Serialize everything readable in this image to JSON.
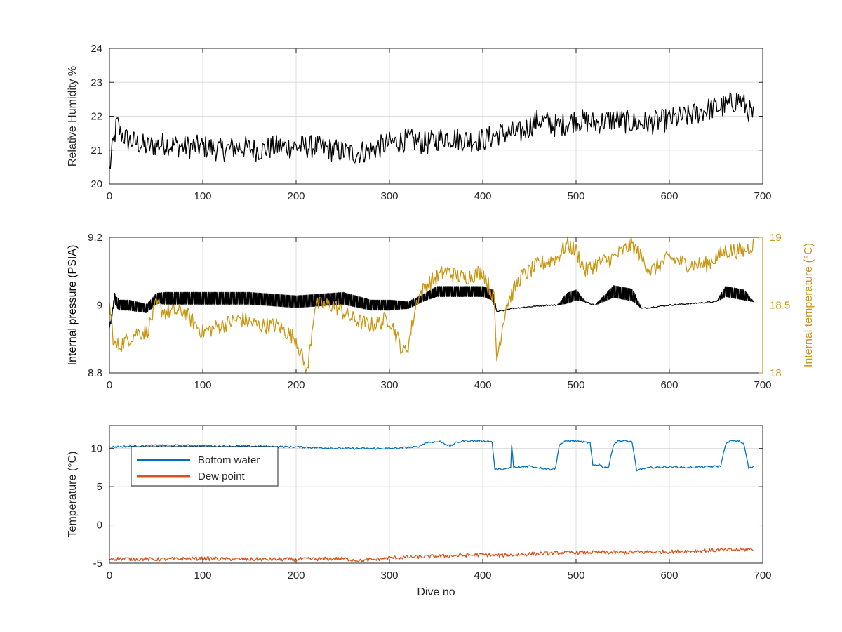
{
  "chart_data": [
    {
      "type": "line",
      "xlim": [
        0,
        700
      ],
      "ylim": [
        20,
        24
      ],
      "xticks": [
        0,
        100,
        200,
        300,
        400,
        500,
        600,
        700
      ],
      "yticks": [
        20,
        21,
        22,
        23,
        24
      ],
      "xlabel": "",
      "ylabel": "Relative Humidity %",
      "grid": true,
      "series": [
        {
          "color": "#000000",
          "noise": 0.35,
          "x": [
            0,
            3,
            8,
            12,
            20,
            40,
            60,
            80,
            100,
            120,
            140,
            160,
            180,
            200,
            220,
            240,
            260,
            280,
            300,
            320,
            340,
            360,
            380,
            400,
            420,
            440,
            460,
            480,
            500,
            520,
            540,
            560,
            580,
            600,
            620,
            640,
            660,
            675,
            690
          ],
          "y": [
            20.4,
            21.0,
            21.8,
            21.5,
            21.3,
            21.1,
            21.2,
            21.1,
            21.1,
            21.0,
            21.1,
            21.0,
            21.1,
            21.1,
            21.1,
            21.0,
            20.9,
            21.0,
            21.2,
            21.3,
            21.2,
            21.4,
            21.3,
            21.3,
            21.5,
            21.5,
            21.9,
            21.7,
            21.9,
            21.8,
            21.9,
            21.8,
            21.8,
            21.9,
            22.0,
            22.2,
            22.3,
            22.5,
            22.0
          ]
        }
      ]
    },
    {
      "type": "line",
      "xlim": [
        0,
        700
      ],
      "ylim": [
        8.8,
        9.2
      ],
      "y2lim": [
        18,
        19
      ],
      "xticks": [
        0,
        100,
        200,
        300,
        400,
        500,
        600,
        700
      ],
      "yticks": [
        8.8,
        9,
        9.2
      ],
      "y2ticks": [
        18,
        18.5,
        19
      ],
      "xlabel": "",
      "ylabel": "Internal pressure (PSIA)",
      "y2label": "Internal temperature (°C)",
      "y2color": "#c8960f",
      "grid": true,
      "series": [
        {
          "axis": "left",
          "color": "#000000",
          "osc": true,
          "x": [
            0,
            5,
            10,
            20,
            40,
            50,
            60,
            100,
            150,
            200,
            250,
            280,
            300,
            320,
            335,
            350,
            400,
            410,
            415,
            430,
            450,
            470,
            480,
            490,
            500,
            510,
            520,
            540,
            560,
            570,
            600,
            650,
            660,
            680,
            690
          ],
          "y": [
            8.93,
            9.02,
            9.0,
            9.0,
            8.99,
            9.02,
            9.02,
            9.02,
            9.02,
            9.01,
            9.02,
            9.0,
            9.0,
            9.0,
            9.02,
            9.04,
            9.04,
            9.03,
            8.98,
            8.99,
            8.995,
            9.0,
            9.0,
            9.02,
            9.03,
            9.01,
            9.0,
            9.04,
            9.03,
            8.99,
            9.0,
            9.01,
            9.04,
            9.03,
            9.01
          ],
          "osc_amp": [
            0.0,
            0.03,
            0.03,
            0.03,
            0.025,
            0.03,
            0.035,
            0.035,
            0.035,
            0.035,
            0.035,
            0.03,
            0.03,
            0.02,
            0.02,
            0.03,
            0.03,
            0.03,
            0.0,
            0.0,
            0.0,
            0.0,
            0.0,
            0.03,
            0.03,
            0.0,
            0.0,
            0.035,
            0.035,
            0.0,
            0.0,
            0.0,
            0.03,
            0.03,
            0.0
          ]
        },
        {
          "axis": "right",
          "color": "#c8960f",
          "noise": 0.06,
          "x": [
            0,
            5,
            10,
            20,
            30,
            40,
            50,
            60,
            80,
            100,
            120,
            140,
            160,
            180,
            200,
            212,
            220,
            240,
            260,
            280,
            300,
            315,
            320,
            330,
            340,
            350,
            360,
            380,
            400,
            412,
            415,
            425,
            440,
            460,
            480,
            490,
            500,
            510,
            520,
            540,
            560,
            580,
            600,
            620,
            640,
            660,
            680,
            690
          ],
          "y": [
            18.5,
            18.2,
            18.2,
            18.25,
            18.3,
            18.3,
            18.5,
            18.45,
            18.45,
            18.3,
            18.35,
            18.4,
            18.35,
            18.35,
            18.25,
            18.0,
            18.5,
            18.5,
            18.4,
            18.35,
            18.4,
            18.15,
            18.2,
            18.55,
            18.65,
            18.7,
            18.75,
            18.7,
            18.75,
            18.55,
            18.1,
            18.5,
            18.7,
            18.8,
            18.85,
            18.95,
            18.9,
            18.75,
            18.8,
            18.85,
            18.95,
            18.75,
            18.85,
            18.8,
            18.8,
            18.9,
            18.9,
            18.95
          ]
        }
      ]
    },
    {
      "type": "line",
      "xlim": [
        0,
        700
      ],
      "ylim": [
        -5,
        13
      ],
      "xticks": [
        0,
        100,
        200,
        300,
        400,
        500,
        600,
        700
      ],
      "yticks": [
        -5,
        0,
        5,
        10
      ],
      "xlabel": "Dive no",
      "ylabel": "Temperature (°C)",
      "grid": true,
      "legend": "top-left",
      "series": [
        {
          "name": "Bottom water",
          "color": "#0072bd",
          "noise": 0.12,
          "x": [
            0,
            50,
            100,
            115,
            150,
            200,
            250,
            300,
            330,
            340,
            355,
            365,
            370,
            380,
            400,
            410,
            413,
            416,
            425,
            430,
            431,
            433,
            436,
            450,
            470,
            478,
            482,
            490,
            500,
            510,
            515,
            518,
            525,
            530,
            535,
            540,
            545,
            550,
            560,
            565,
            568,
            580,
            600,
            620,
            640,
            655,
            660,
            665,
            675,
            680,
            685,
            690
          ],
          "y": [
            10.2,
            10.4,
            10.4,
            10.3,
            10.3,
            10.2,
            10.0,
            10.0,
            10.2,
            10.8,
            10.9,
            10.3,
            10.7,
            11.0,
            11.0,
            10.9,
            7.2,
            7.3,
            7.3,
            7.5,
            10.5,
            7.6,
            7.5,
            7.7,
            7.3,
            7.4,
            10.5,
            11.0,
            11.0,
            10.8,
            10.7,
            7.8,
            7.9,
            7.5,
            7.6,
            10.5,
            11.0,
            11.0,
            10.9,
            7.0,
            7.3,
            7.5,
            7.6,
            7.5,
            7.6,
            7.7,
            10.5,
            11.0,
            11.0,
            10.5,
            7.4,
            7.6
          ]
        },
        {
          "name": "Dew point",
          "color": "#d95319",
          "noise": 0.25,
          "x": [
            0,
            50,
            100,
            150,
            200,
            250,
            270,
            300,
            350,
            400,
            420,
            450,
            500,
            550,
            600,
            650,
            690
          ],
          "y": [
            -4.4,
            -4.5,
            -4.4,
            -4.5,
            -4.5,
            -4.4,
            -4.7,
            -4.3,
            -4.1,
            -3.9,
            -4.0,
            -3.8,
            -3.6,
            -3.6,
            -3.5,
            -3.3,
            -3.2
          ]
        }
      ]
    }
  ]
}
